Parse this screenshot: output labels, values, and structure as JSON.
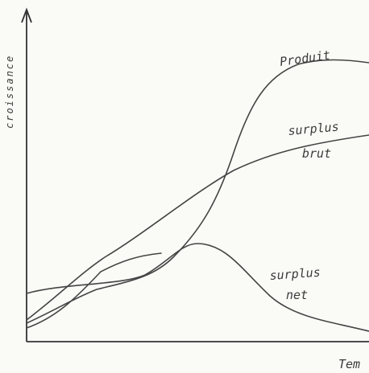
{
  "axes": {
    "y_label": "croissance",
    "x_label": "Tem"
  },
  "curves": [
    {
      "label": "Produit"
    },
    {
      "label": "surplus",
      "label2": "brut"
    },
    {
      "label": "surplus",
      "label2": "net"
    }
  ]
}
